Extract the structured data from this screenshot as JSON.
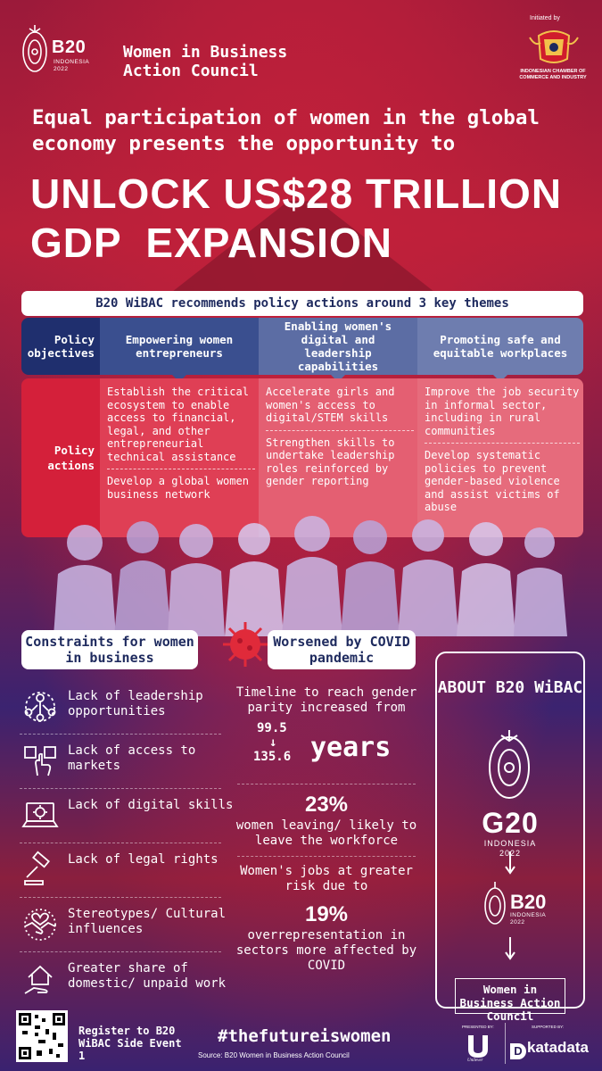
{
  "header": {
    "b20_logo_text": "B20",
    "b20_logo_sub1": "INDONESIA",
    "b20_logo_sub2": "2022",
    "council_title": "Women in Business Action Council",
    "initiated_by": "Initiated by",
    "kadin_text": "INDONESIAN CHAMBER OF COMMERCE AND INDUSTRY"
  },
  "intro": "Equal participation of women in the global economy presents the opportunity to",
  "headline_line1": "UNLOCK US$28 TRILLION",
  "headline_line2": "GDP  EXPANSION",
  "themes": {
    "banner": "B20 WiBAC recommends policy actions around 3 key themes",
    "objectives_label": "Policy objectives",
    "actions_label": "Policy actions",
    "objectives": [
      "Empowering women entrepreneurs",
      "Enabling women's digital and leadership capabilities",
      "Promoting safe and equitable workplaces"
    ],
    "actions": [
      [
        "Establish the critical ecosystem to enable access to financial, legal, and other entrepreneurial technical assistance",
        "Develop a global women business network"
      ],
      [
        "Accelerate girls and women's access to digital/STEM skills",
        "Strengthen skills to undertake leadership roles reinforced by gender reporting"
      ],
      [
        "Improve the job security in informal sector, including in rural communities",
        "Develop systematic policies to prevent gender-based violence and assist victims of abuse"
      ]
    ]
  },
  "constraints": {
    "title": "Constraints for women in business",
    "items": [
      {
        "label": "Lack of leadership opportunities",
        "icon": "leadership-network-icon"
      },
      {
        "label": "Lack of access to markets",
        "icon": "hand-click-icon"
      },
      {
        "label": "Lack of digital skills",
        "icon": "laptop-gear-icon"
      },
      {
        "label": "Lack of legal rights",
        "icon": "gavel-icon"
      },
      {
        "label": "Stereotypes/ Cultural influences",
        "icon": "handshake-heart-icon"
      },
      {
        "label": "Greater share of domestic/ unpaid work",
        "icon": "house-hand-icon"
      }
    ]
  },
  "covid": {
    "title": "Worsened by COVID pandemic",
    "timeline_text": "Timeline to reach gender parity increased from",
    "years_from": "99.5",
    "years_to": "135.6",
    "years_word": "years",
    "stat1_value": "23%",
    "stat1_text": "women leaving/ likely to leave the workforce",
    "jobs_text": "Women's jobs at greater risk due to",
    "stat2_value": "19%",
    "stat2_text": "overrepresentation in sectors more affected by COVID"
  },
  "about": {
    "title": "ABOUT B20 WiBAC",
    "g20_text": "G20",
    "g20_sub1": "INDONESIA",
    "g20_sub2": "2022",
    "b20_text": "B20",
    "b20_sub1": "INDONESIA",
    "b20_sub2": "2022",
    "wibac_box": "Women in Business Action Council"
  },
  "footer": {
    "register": "Register to B20 WiBAC Side Event 1",
    "hashtag": "#thefutureiswomen",
    "source": "Source: B20 Women in Business Action Council",
    "presented_by": "PRESENTED BY:",
    "supported_by": "SUPPORTED BY:",
    "unilever": "Unilever",
    "katadata": "katadata"
  },
  "colors": {
    "navy": "#1f2f6e",
    "accent_red": "#d4203a",
    "background_purple": "#2b1c5a"
  }
}
